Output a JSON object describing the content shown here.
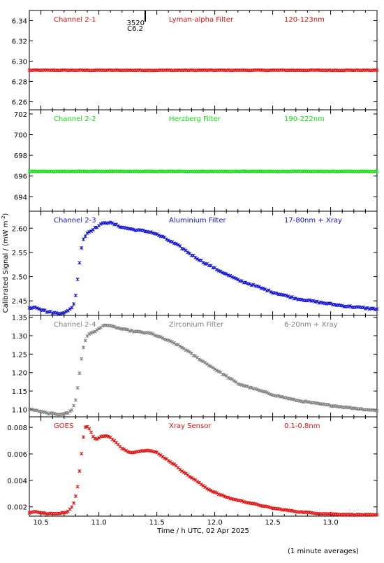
{
  "xlabel": "Time / h UTC, 02 Apr 2025",
  "ylabel": "Calibrated Signal / (mW m",
  "ylabel_sup": "-2",
  "ylabel_close": ")",
  "footnote": "(1 minute averages)",
  "top_marker": {
    "value": "3520",
    "value2": "C6.2"
  },
  "chart_data": [
    {
      "type": "scatter",
      "channel": "Channel 2-1",
      "filter": "Lyman-alpha Filter",
      "band": "120-123nm",
      "color": "#e01010",
      "xlim": [
        10.4,
        13.4
      ],
      "ylim": [
        6.252,
        6.35
      ],
      "yticks": [
        6.26,
        6.28,
        6.3,
        6.32,
        6.34
      ],
      "ytick_labels": [
        "6.26",
        "6.28",
        "6.30",
        "6.32",
        "6.34"
      ],
      "profile": {
        "kind": "flat",
        "level": 6.291,
        "noise": 0.0003
      }
    },
    {
      "type": "scatter",
      "channel": "Channel 2-2",
      "filter": "Herzberg Filter",
      "band": "190-222nm",
      "color": "#10e010",
      "xlim": [
        10.4,
        13.4
      ],
      "ylim": [
        692.6,
        702.4
      ],
      "yticks": [
        694,
        696,
        698,
        700,
        702
      ],
      "ytick_labels": [
        "694",
        "696",
        "698",
        "700",
        "702"
      ],
      "profile": {
        "kind": "flat",
        "level": 696.45,
        "noise": 0.02
      }
    },
    {
      "type": "scatter",
      "channel": "Channel 2-3",
      "filter": "Aluminium Filter",
      "band": "17-80nm + Xray",
      "color": "#1010d0",
      "xlim": [
        10.4,
        13.4
      ],
      "ylim": [
        2.42,
        2.635
      ],
      "yticks": [
        2.45,
        2.5,
        2.55,
        2.6
      ],
      "ytick_labels": [
        "2.45",
        "2.50",
        "2.55",
        "2.60"
      ],
      "profile": {
        "kind": "curve",
        "knots": [
          [
            10.4,
            2.435
          ],
          [
            10.45,
            2.438
          ],
          [
            10.55,
            2.428
          ],
          [
            10.65,
            2.424
          ],
          [
            10.73,
            2.428
          ],
          [
            10.78,
            2.44
          ],
          [
            10.8,
            2.462
          ],
          [
            10.82,
            2.5
          ],
          [
            10.84,
            2.545
          ],
          [
            10.86,
            2.575
          ],
          [
            10.9,
            2.59
          ],
          [
            10.95,
            2.598
          ],
          [
            11.0,
            2.605
          ],
          [
            11.05,
            2.612
          ],
          [
            11.1,
            2.611
          ],
          [
            11.2,
            2.602
          ],
          [
            11.3,
            2.597
          ],
          [
            11.45,
            2.592
          ],
          [
            11.55,
            2.582
          ],
          [
            11.6,
            2.575
          ],
          [
            11.7,
            2.562
          ],
          [
            11.8,
            2.545
          ],
          [
            11.9,
            2.53
          ],
          [
            12.0,
            2.517
          ],
          [
            12.1,
            2.505
          ],
          [
            12.2,
            2.493
          ],
          [
            12.3,
            2.485
          ],
          [
            12.5,
            2.468
          ],
          [
            12.7,
            2.455
          ],
          [
            12.9,
            2.447
          ],
          [
            13.1,
            2.44
          ],
          [
            13.3,
            2.435
          ],
          [
            13.4,
            2.433
          ]
        ],
        "noise": 0.0015
      }
    },
    {
      "type": "scatter",
      "channel": "Channel 2-4",
      "filter": "Zirconium Filter",
      "band": "6-20nm + Xray",
      "color": "#808080",
      "xlim": [
        10.4,
        13.4
      ],
      "ylim": [
        1.08,
        1.355
      ],
      "yticks": [
        1.1,
        1.15,
        1.2,
        1.25,
        1.3,
        1.35
      ],
      "ytick_labels": [
        "1.10",
        "1.15",
        "1.20",
        "1.25",
        "1.30",
        "1.35"
      ],
      "profile": {
        "kind": "curve",
        "knots": [
          [
            10.4,
            1.1
          ],
          [
            10.45,
            1.098
          ],
          [
            10.55,
            1.09
          ],
          [
            10.65,
            1.087
          ],
          [
            10.73,
            1.09
          ],
          [
            10.77,
            1.1
          ],
          [
            10.8,
            1.125
          ],
          [
            10.82,
            1.165
          ],
          [
            10.84,
            1.215
          ],
          [
            10.86,
            1.26
          ],
          [
            10.88,
            1.285
          ],
          [
            10.9,
            1.3
          ],
          [
            10.95,
            1.31
          ],
          [
            11.0,
            1.318
          ],
          [
            11.05,
            1.33
          ],
          [
            11.1,
            1.326
          ],
          [
            11.2,
            1.318
          ],
          [
            11.3,
            1.312
          ],
          [
            11.45,
            1.306
          ],
          [
            11.55,
            1.293
          ],
          [
            11.65,
            1.28
          ],
          [
            11.75,
            1.262
          ],
          [
            11.85,
            1.24
          ],
          [
            12.0,
            1.21
          ],
          [
            12.1,
            1.19
          ],
          [
            12.2,
            1.17
          ],
          [
            12.3,
            1.16
          ],
          [
            12.5,
            1.14
          ],
          [
            12.7,
            1.125
          ],
          [
            12.9,
            1.115
          ],
          [
            13.1,
            1.107
          ],
          [
            13.3,
            1.1
          ],
          [
            13.4,
            1.097
          ]
        ],
        "noise": 0.0015
      }
    },
    {
      "type": "scatter",
      "channel": "GOES",
      "filter": "Xray Sensor",
      "band": "0.1-0.8nm",
      "color": "#e01010",
      "xlim": [
        10.4,
        13.4
      ],
      "ylim": [
        0.0013,
        0.0088
      ],
      "yticks": [
        0.002,
        0.004,
        0.006,
        0.008
      ],
      "ytick_labels": [
        "0.002",
        "0.004",
        "0.006",
        "0.008"
      ],
      "profile": {
        "kind": "curve",
        "knots": [
          [
            10.4,
            0.00155
          ],
          [
            10.45,
            0.00165
          ],
          [
            10.55,
            0.00148
          ],
          [
            10.65,
            0.0015
          ],
          [
            10.72,
            0.0016
          ],
          [
            10.75,
            0.0018
          ],
          [
            10.78,
            0.0022
          ],
          [
            10.8,
            0.0028
          ],
          [
            10.82,
            0.0037
          ],
          [
            10.84,
            0.0052
          ],
          [
            10.86,
            0.0068
          ],
          [
            10.875,
            0.0079
          ],
          [
            10.89,
            0.0081
          ],
          [
            10.92,
            0.0079
          ],
          [
            10.95,
            0.0073
          ],
          [
            10.98,
            0.0071
          ],
          [
            11.02,
            0.0073
          ],
          [
            11.07,
            0.0074
          ],
          [
            11.12,
            0.0071
          ],
          [
            11.2,
            0.0064
          ],
          [
            11.27,
            0.0061
          ],
          [
            11.35,
            0.0062
          ],
          [
            11.42,
            0.0063
          ],
          [
            11.5,
            0.0061
          ],
          [
            11.55,
            0.0058
          ],
          [
            11.65,
            0.0052
          ],
          [
            11.75,
            0.0045
          ],
          [
            11.85,
            0.0039
          ],
          [
            11.95,
            0.0033
          ],
          [
            12.05,
            0.0029
          ],
          [
            12.15,
            0.0026
          ],
          [
            12.25,
            0.0024
          ],
          [
            12.35,
            0.0022
          ],
          [
            12.5,
            0.0019
          ],
          [
            12.7,
            0.00165
          ],
          [
            12.9,
            0.0015
          ],
          [
            13.1,
            0.00143
          ],
          [
            13.3,
            0.0014
          ],
          [
            13.4,
            0.00138
          ]
        ],
        "noise": 3e-05
      }
    }
  ],
  "xaxis": {
    "ticks": [
      10.5,
      11.0,
      11.5,
      12.0,
      12.5,
      13.0
    ],
    "tick_labels": [
      "10.5",
      "11.0",
      "11.5",
      "12.0",
      "12.5",
      "13.0"
    ]
  }
}
